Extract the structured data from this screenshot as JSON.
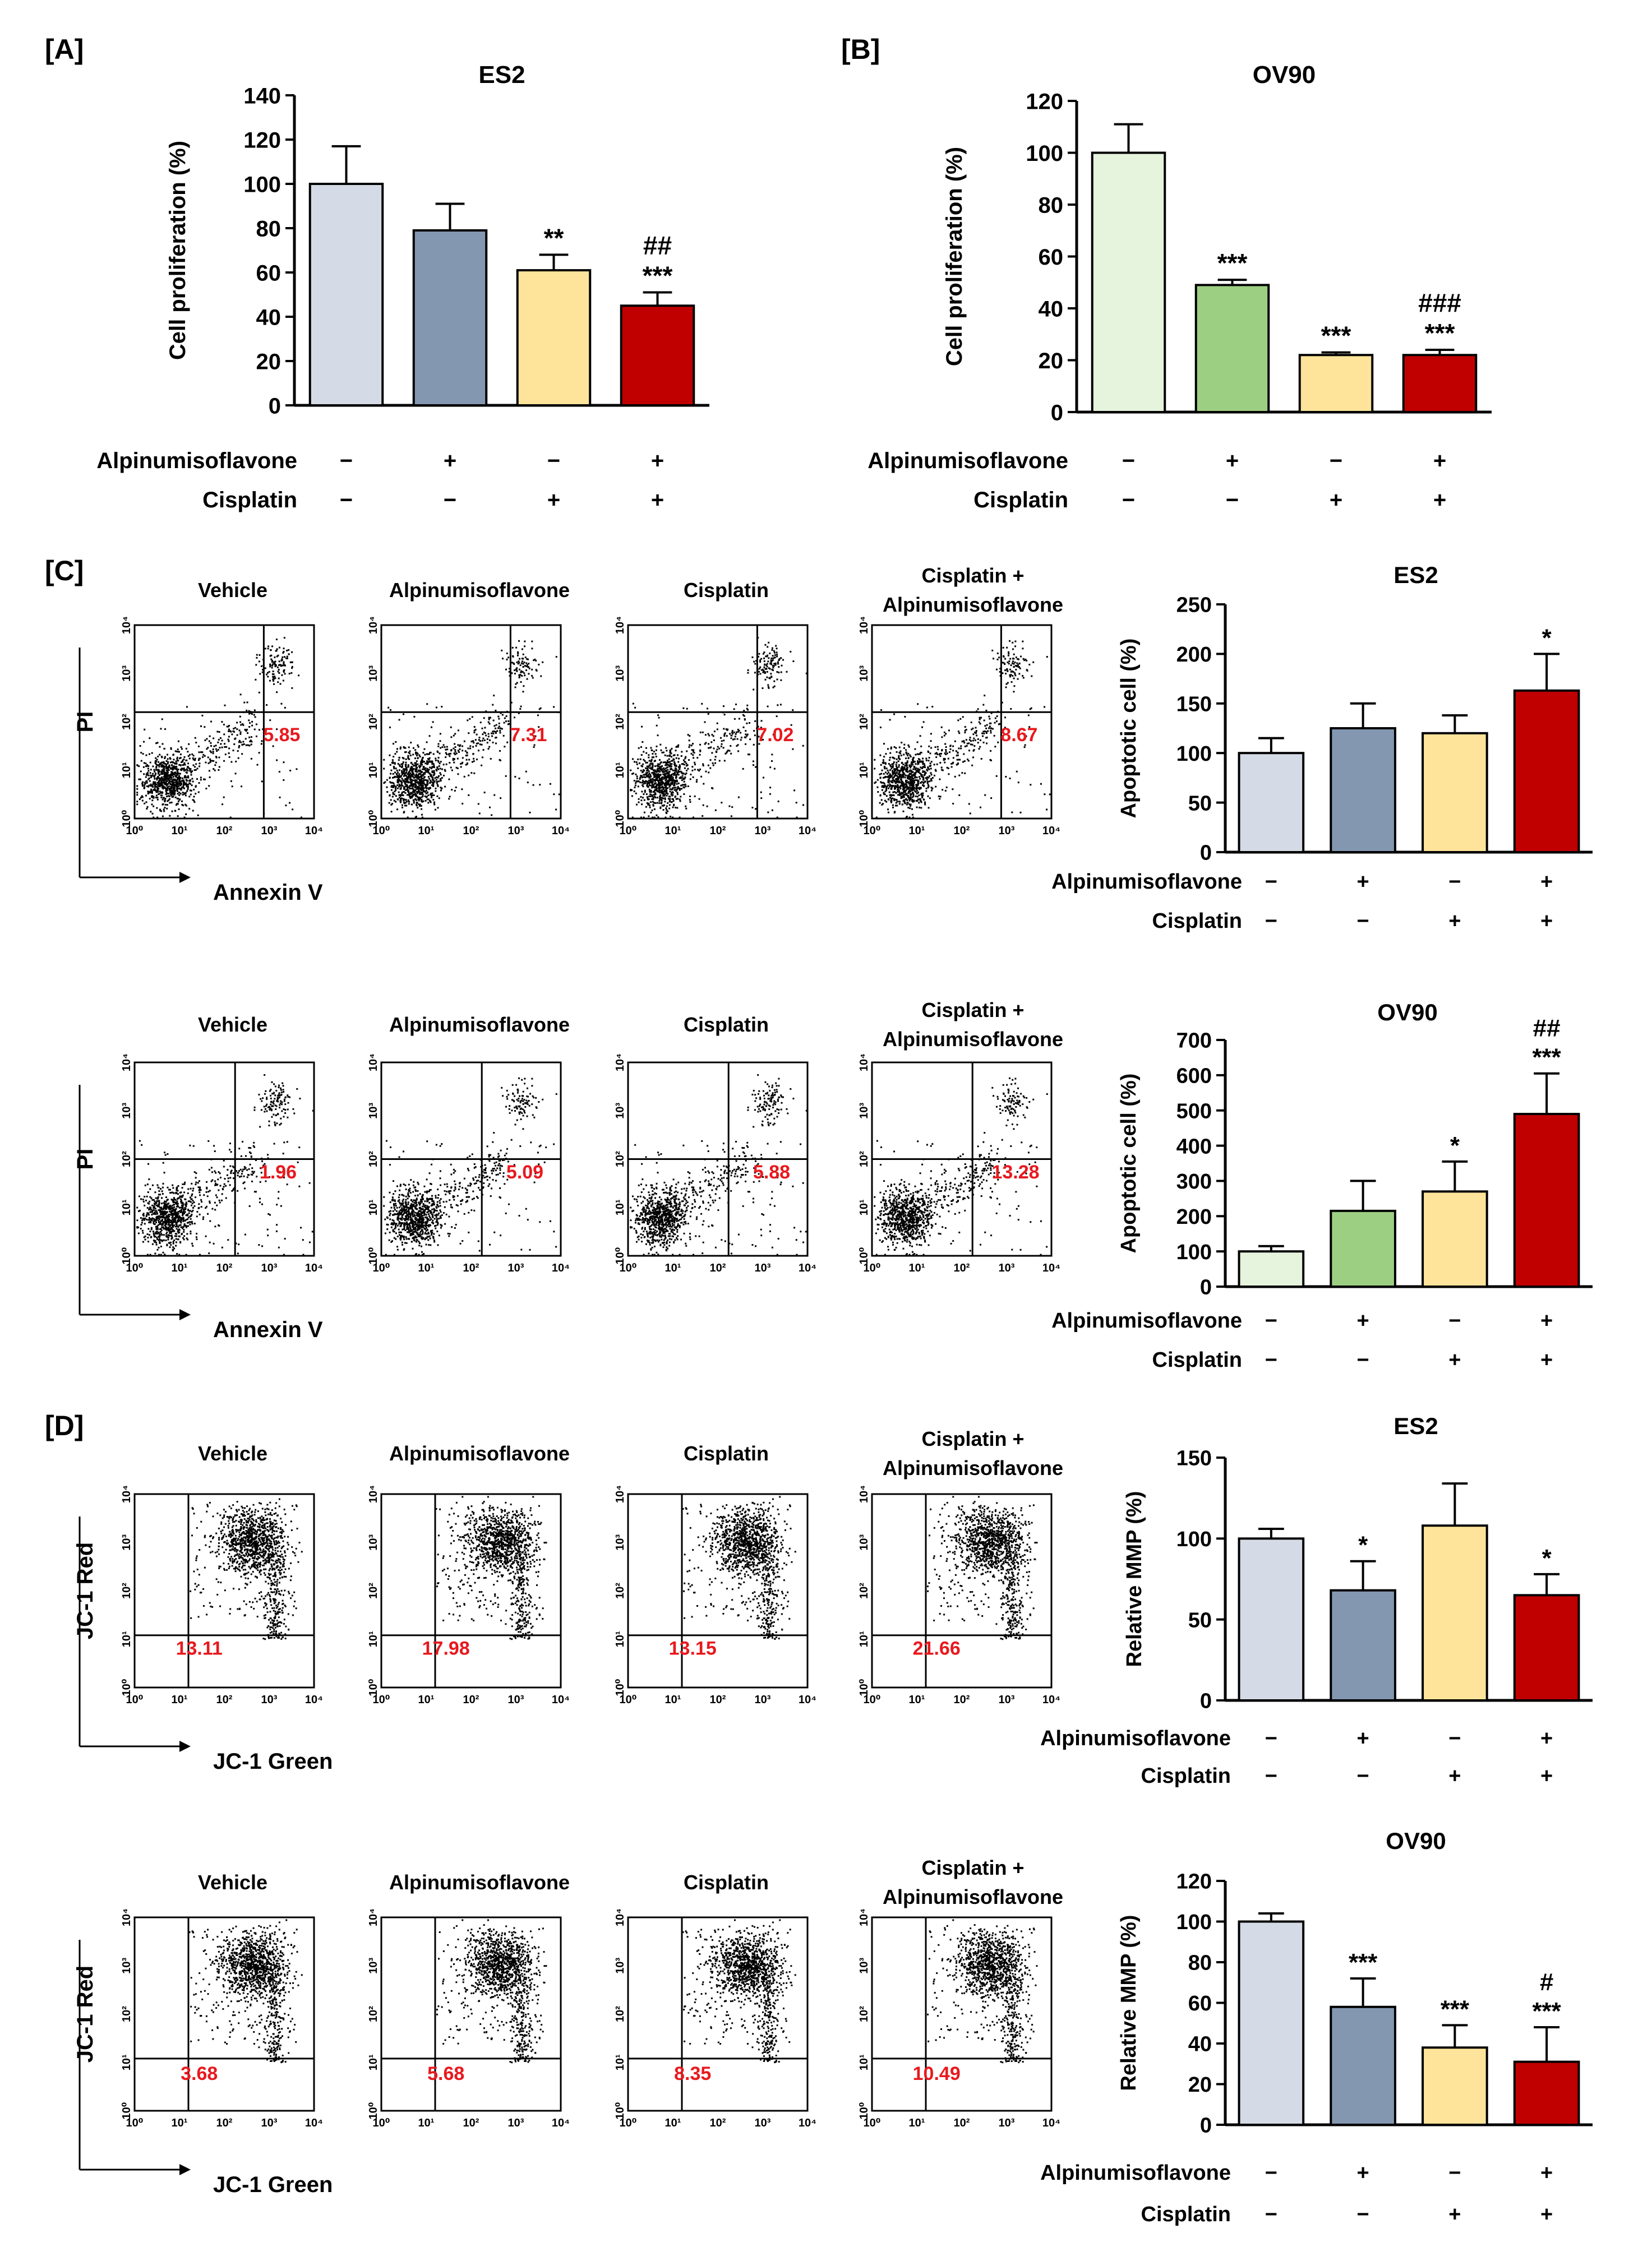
{
  "panel_labels": {
    "a": "[A]",
    "b": "[B]",
    "c": "[C]",
    "d": "[D]"
  },
  "treatment_labels": {
    "drug": "Alpinumisoflavone",
    "cis": "Cisplatin",
    "plus": "+",
    "minus": "−"
  },
  "conditions": [
    {
      "drug": "−",
      "cis": "−"
    },
    {
      "drug": "+",
      "cis": "−"
    },
    {
      "drug": "−",
      "cis": "+"
    },
    {
      "drug": "+",
      "cis": "+"
    }
  ],
  "colors": {
    "es2": [
      "#d4dbe6",
      "#8497b1",
      "#fde49a",
      "#c00000"
    ],
    "ov90": [
      "#e6f3dd",
      "#9dcf82",
      "#fde49a",
      "#c00000"
    ],
    "gate_value": "#e8191e"
  },
  "flow_axis_labels": {
    "pi": "PI",
    "annexin": "Annexin V",
    "jc1_red": "JC-1 Red",
    "jc1_green": "JC-1 Green"
  },
  "flow_ticks": [
    "10⁰",
    "10¹",
    "10²",
    "10³",
    "10⁴"
  ],
  "chart_data": [
    {
      "id": "A",
      "type": "bar",
      "title": "ES2",
      "ylabel": "Cell proliferation (%)",
      "ylim": [
        0,
        140
      ],
      "yticks": [
        0,
        20,
        40,
        60,
        80,
        100,
        120,
        140
      ],
      "values": [
        100,
        79,
        61,
        45
      ],
      "errors": [
        17,
        12,
        7,
        6
      ],
      "significance": [
        [],
        [],
        [
          "**"
        ],
        [
          "##",
          "***"
        ]
      ],
      "palette": "es2"
    },
    {
      "id": "B",
      "type": "bar",
      "title": "OV90",
      "ylabel": "Cell proliferation (%)",
      "ylim": [
        0,
        120
      ],
      "yticks": [
        0,
        20,
        40,
        60,
        80,
        100,
        120
      ],
      "values": [
        100,
        49,
        22,
        22
      ],
      "errors": [
        11,
        2,
        1,
        2
      ],
      "significance": [
        [],
        [
          "***"
        ],
        [
          "***"
        ],
        [
          "###",
          "***"
        ]
      ],
      "palette": "ov90"
    },
    {
      "id": "C-ES2",
      "type": "bar",
      "title": "ES2",
      "ylabel": "Apoptotic cell (%)",
      "ylim": [
        0,
        250
      ],
      "yticks": [
        0,
        50,
        100,
        150,
        200,
        250
      ],
      "values": [
        100,
        125,
        120,
        163
      ],
      "errors": [
        15,
        25,
        18,
        37
      ],
      "significance": [
        [],
        [],
        [],
        [
          "*"
        ]
      ],
      "palette": "es2"
    },
    {
      "id": "C-OV90",
      "type": "bar",
      "title": "OV90",
      "ylabel": "Apoptotic cell (%)",
      "ylim": [
        0,
        700
      ],
      "yticks": [
        0,
        100,
        200,
        300,
        400,
        500,
        600,
        700
      ],
      "values": [
        100,
        215,
        270,
        490
      ],
      "errors": [
        15,
        85,
        85,
        115
      ],
      "significance": [
        [],
        [],
        [
          "*"
        ],
        [
          "##",
          "***"
        ]
      ],
      "palette": "ov90"
    },
    {
      "id": "D-ES2",
      "type": "bar",
      "title": "ES2",
      "ylabel": "Relative MMP (%)",
      "ylim": [
        0,
        150
      ],
      "yticks": [
        0,
        50,
        100,
        150
      ],
      "values": [
        100,
        68,
        108,
        65
      ],
      "errors": [
        6,
        18,
        26,
        13
      ],
      "significance": [
        [],
        [
          "*"
        ],
        [],
        [
          "*"
        ]
      ],
      "palette": "es2"
    },
    {
      "id": "D-OV90",
      "type": "bar",
      "title": "OV90",
      "ylabel": "Relative MMP (%)",
      "ylim": [
        0,
        120
      ],
      "yticks": [
        0,
        20,
        40,
        60,
        80,
        100,
        120
      ],
      "values": [
        100,
        58,
        38,
        31
      ],
      "errors": [
        4,
        14,
        11,
        17
      ],
      "significance": [
        [],
        [
          "***"
        ],
        [
          "***"
        ],
        [
          "#",
          "***"
        ]
      ],
      "palette": "es2"
    },
    {
      "id": "C-flow-ES2",
      "type": "scatter",
      "titles": [
        "Vehicle",
        "Alpinumisoflavone",
        "Cisplatin",
        "Cisplatin +",
        "Alpinumisoflavone"
      ],
      "values": [
        "5.85",
        "7.31",
        "7.02",
        "8.67"
      ]
    },
    {
      "id": "C-flow-OV90",
      "type": "scatter",
      "titles": [
        "Vehicle",
        "Alpinumisoflavone",
        "Cisplatin",
        "Cisplatin +",
        "Alpinumisoflavone"
      ],
      "values": [
        "1.96",
        "5.09",
        "5.88",
        "13.28"
      ]
    },
    {
      "id": "D-flow-ES2",
      "type": "scatter",
      "titles": [
        "Vehicle",
        "Alpinumisoflavone",
        "Cisplatin",
        "Cisplatin +",
        "Alpinumisoflavone"
      ],
      "values": [
        "13.11",
        "17.98",
        "13.15",
        "21.66"
      ]
    },
    {
      "id": "D-flow-OV90",
      "type": "scatter",
      "titles": [
        "Vehicle",
        "Alpinumisoflavone",
        "Cisplatin",
        "Cisplatin +",
        "Alpinumisoflavone"
      ],
      "values": [
        "3.68",
        "5.68",
        "8.35",
        "10.49"
      ]
    }
  ]
}
